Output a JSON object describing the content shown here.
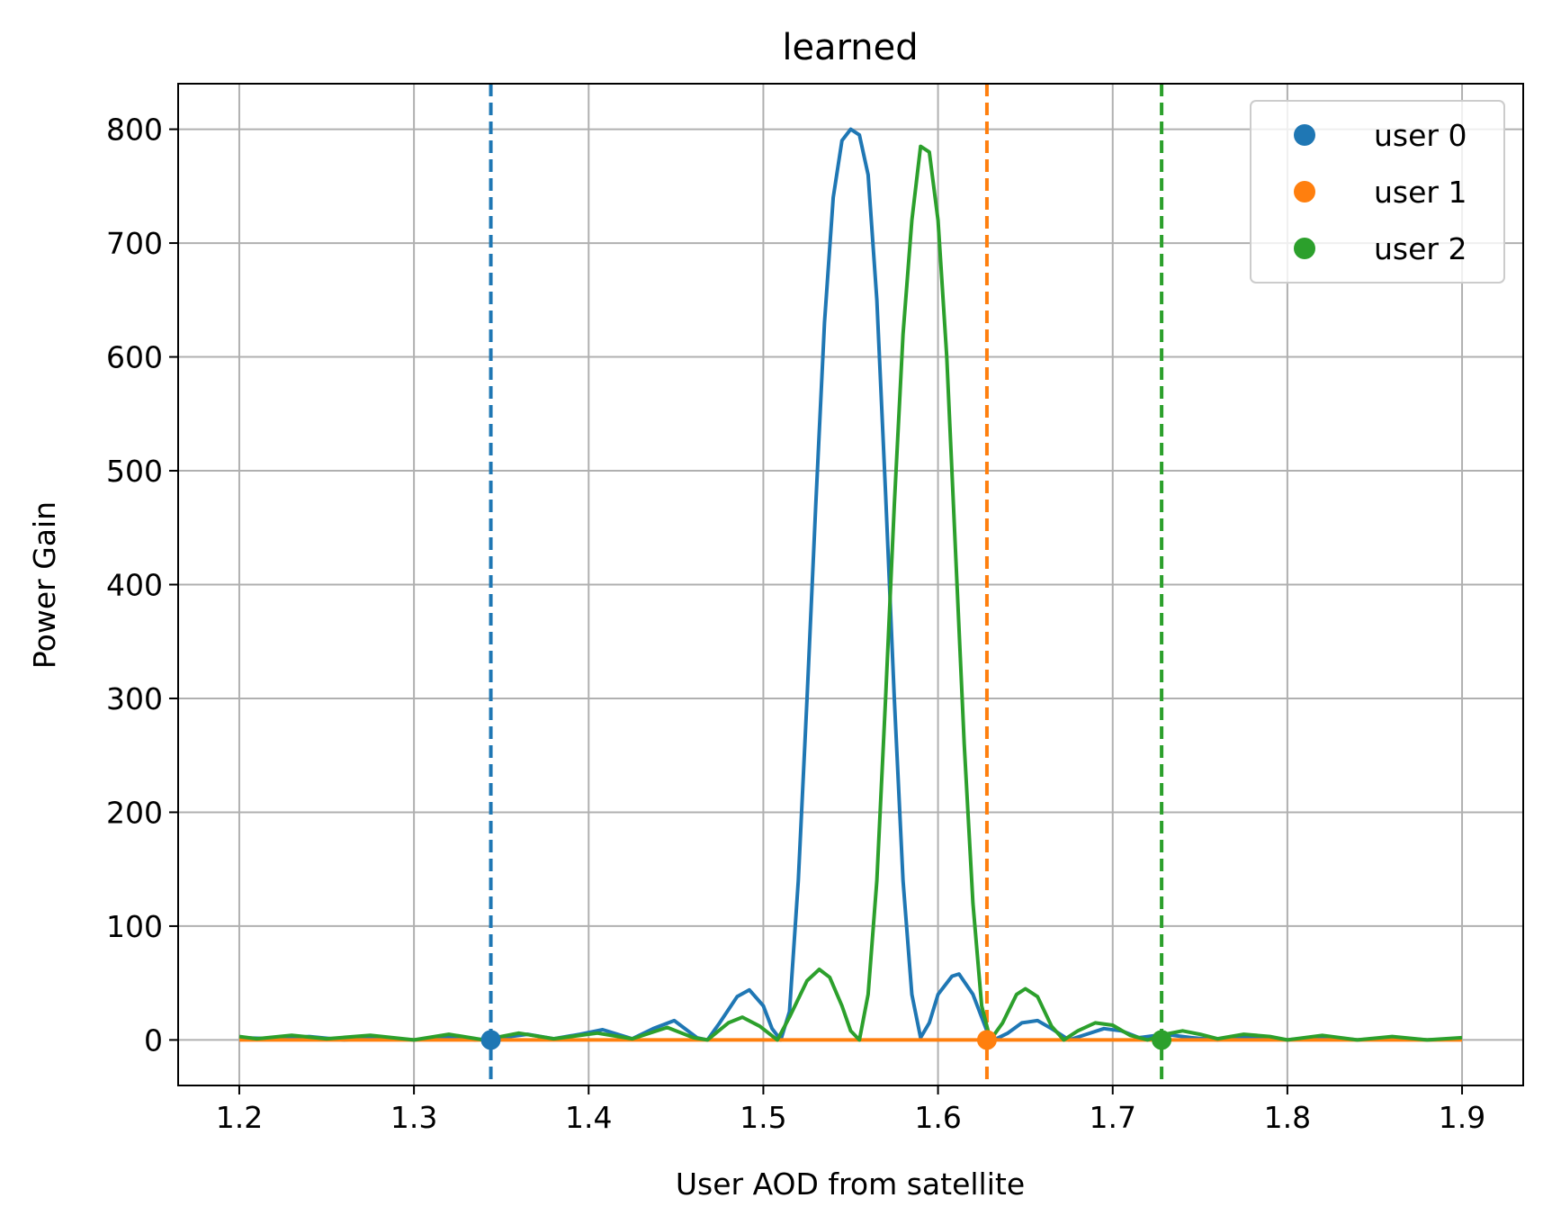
{
  "chart_data": {
    "type": "line",
    "title": "learned",
    "xlabel": "User AOD from satellite",
    "ylabel": "Power Gain",
    "xlim": [
      1.165,
      1.935
    ],
    "ylim": [
      -40,
      840
    ],
    "xticks": [
      1.2,
      1.3,
      1.4,
      1.5,
      1.6,
      1.7,
      1.8,
      1.9
    ],
    "xtick_labels": [
      "1.2",
      "1.3",
      "1.4",
      "1.5",
      "1.6",
      "1.7",
      "1.8",
      "1.9"
    ],
    "yticks": [
      0,
      100,
      200,
      300,
      400,
      500,
      600,
      700,
      800
    ],
    "ytick_labels": [
      "0",
      "100",
      "200",
      "300",
      "400",
      "500",
      "600",
      "700",
      "800"
    ],
    "grid": true,
    "legend_position": "top-right",
    "series": [
      {
        "name": "user 0",
        "color": "#1f77b4",
        "user_aod": 1.344,
        "points": [
          [
            1.2,
            2
          ],
          [
            1.22,
            1
          ],
          [
            1.24,
            3
          ],
          [
            1.26,
            0
          ],
          [
            1.28,
            2
          ],
          [
            1.3,
            0
          ],
          [
            1.32,
            3
          ],
          [
            1.335,
            0
          ],
          [
            1.35,
            2
          ],
          [
            1.365,
            5
          ],
          [
            1.38,
            1
          ],
          [
            1.395,
            5
          ],
          [
            1.408,
            9
          ],
          [
            1.425,
            1
          ],
          [
            1.437,
            10
          ],
          [
            1.449,
            17
          ],
          [
            1.462,
            2
          ],
          [
            1.468,
            0
          ],
          [
            1.475,
            15
          ],
          [
            1.485,
            38
          ],
          [
            1.492,
            44
          ],
          [
            1.5,
            30
          ],
          [
            1.505,
            10
          ],
          [
            1.51,
            0
          ],
          [
            1.515,
            25
          ],
          [
            1.52,
            140
          ],
          [
            1.525,
            300
          ],
          [
            1.53,
            470
          ],
          [
            1.535,
            630
          ],
          [
            1.54,
            740
          ],
          [
            1.545,
            790
          ],
          [
            1.55,
            800
          ],
          [
            1.555,
            795
          ],
          [
            1.56,
            760
          ],
          [
            1.565,
            650
          ],
          [
            1.57,
            480
          ],
          [
            1.575,
            300
          ],
          [
            1.58,
            140
          ],
          [
            1.585,
            40
          ],
          [
            1.59,
            2
          ],
          [
            1.595,
            15
          ],
          [
            1.6,
            40
          ],
          [
            1.608,
            56
          ],
          [
            1.612,
            58
          ],
          [
            1.62,
            40
          ],
          [
            1.628,
            8
          ],
          [
            1.632,
            0
          ],
          [
            1.64,
            6
          ],
          [
            1.648,
            15
          ],
          [
            1.657,
            17
          ],
          [
            1.665,
            10
          ],
          [
            1.675,
            0
          ],
          [
            1.685,
            5
          ],
          [
            1.695,
            10
          ],
          [
            1.705,
            8
          ],
          [
            1.715,
            2
          ],
          [
            1.73,
            5
          ],
          [
            1.745,
            2
          ],
          [
            1.76,
            0
          ],
          [
            1.78,
            3
          ],
          [
            1.8,
            0
          ],
          [
            1.82,
            3
          ],
          [
            1.84,
            0
          ],
          [
            1.86,
            2
          ],
          [
            1.88,
            0
          ],
          [
            1.9,
            1
          ]
        ]
      },
      {
        "name": "user 1",
        "color": "#ff7f0e",
        "user_aod": 1.628,
        "points": [
          [
            1.2,
            0
          ],
          [
            1.9,
            0
          ]
        ]
      },
      {
        "name": "user 2",
        "color": "#2ca02c",
        "user_aod": 1.728,
        "points": [
          [
            1.2,
            3
          ],
          [
            1.21,
            1
          ],
          [
            1.23,
            4
          ],
          [
            1.25,
            1
          ],
          [
            1.275,
            4
          ],
          [
            1.3,
            0
          ],
          [
            1.32,
            5
          ],
          [
            1.34,
            0
          ],
          [
            1.36,
            6
          ],
          [
            1.38,
            1
          ],
          [
            1.405,
            6
          ],
          [
            1.425,
            1
          ],
          [
            1.445,
            11
          ],
          [
            1.46,
            2
          ],
          [
            1.468,
            0
          ],
          [
            1.48,
            15
          ],
          [
            1.488,
            20
          ],
          [
            1.498,
            12
          ],
          [
            1.508,
            0
          ],
          [
            1.515,
            20
          ],
          [
            1.525,
            52
          ],
          [
            1.532,
            62
          ],
          [
            1.538,
            55
          ],
          [
            1.545,
            30
          ],
          [
            1.55,
            8
          ],
          [
            1.555,
            0
          ],
          [
            1.56,
            40
          ],
          [
            1.565,
            140
          ],
          [
            1.57,
            300
          ],
          [
            1.575,
            470
          ],
          [
            1.58,
            620
          ],
          [
            1.585,
            720
          ],
          [
            1.59,
            785
          ],
          [
            1.595,
            780
          ],
          [
            1.6,
            720
          ],
          [
            1.605,
            600
          ],
          [
            1.61,
            430
          ],
          [
            1.615,
            260
          ],
          [
            1.62,
            120
          ],
          [
            1.625,
            30
          ],
          [
            1.63,
            0
          ],
          [
            1.637,
            15
          ],
          [
            1.645,
            40
          ],
          [
            1.65,
            45
          ],
          [
            1.657,
            38
          ],
          [
            1.665,
            12
          ],
          [
            1.672,
            0
          ],
          [
            1.68,
            8
          ],
          [
            1.69,
            15
          ],
          [
            1.7,
            13
          ],
          [
            1.71,
            4
          ],
          [
            1.72,
            0
          ],
          [
            1.73,
            5
          ],
          [
            1.74,
            8
          ],
          [
            1.75,
            5
          ],
          [
            1.76,
            1
          ],
          [
            1.775,
            5
          ],
          [
            1.79,
            3
          ],
          [
            1.8,
            0
          ],
          [
            1.82,
            4
          ],
          [
            1.84,
            0
          ],
          [
            1.86,
            3
          ],
          [
            1.88,
            0
          ],
          [
            1.9,
            2
          ]
        ]
      }
    ]
  }
}
